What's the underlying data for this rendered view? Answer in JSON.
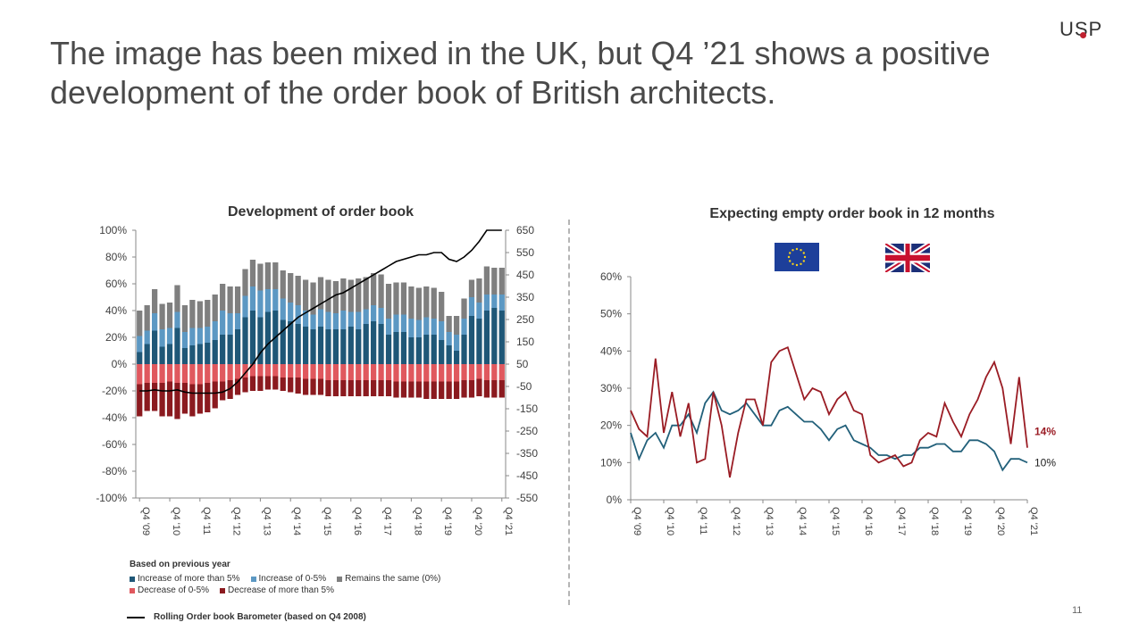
{
  "headline": "The image has been mixed in the UK, but Q4 ’21 shows a positive development of the order book of British architects.",
  "logo": "USP",
  "page_number": "11",
  "colors": {
    "increase_more_5": "#1f5777",
    "increase_0_5": "#5c98c3",
    "remains_same": "#7f7f7f",
    "decrease_0_5": "#e0585e",
    "decrease_more_5": "#8b1a1f",
    "barometer": "#000000",
    "eu_line": "#22607a",
    "uk_line": "#9a1c24"
  },
  "icons": [
    "eu-flag-icon",
    "uk-flag-icon"
  ],
  "legend": {
    "title": "Based on previous year",
    "items": [
      "Increase of more than 5%",
      "Increase of 0-5%",
      "Remains the same  (0%)",
      "Decrease of 0-5%",
      "Decrease of more than 5%"
    ],
    "line_label": "Rolling Order book Barometer (based on Q4 2008)"
  },
  "chart_data": [
    {
      "type": "bar",
      "stacked": true,
      "title": "Development of order book",
      "categories": [
        "Q4 '09",
        "Q1 '10",
        "Q2 '10",
        "Q3 '10",
        "Q4 '10",
        "Q1 '11",
        "Q2 '11",
        "Q3 '11",
        "Q4 '11",
        "Q1 '12",
        "Q2 '12",
        "Q3 '12",
        "Q4 '12",
        "Q1 '13",
        "Q2 '13",
        "Q3 '13",
        "Q4 '13",
        "Q1 '14",
        "Q2 '14",
        "Q3 '14",
        "Q4 '14",
        "Q1 '15",
        "Q2 '15",
        "Q3 '15",
        "Q4 '15",
        "Q1 '16",
        "Q2 '16",
        "Q3 '16",
        "Q4 '16",
        "Q1 '17",
        "Q2 '17",
        "Q3 '17",
        "Q4 '17",
        "Q1 '18",
        "Q2 '18",
        "Q3 '18",
        "Q4 '18",
        "Q1 '19",
        "Q2 '19",
        "Q3 '19",
        "Q4 '19",
        "Q1 '20",
        "Q2 '20",
        "Q3 '20",
        "Q4 '20",
        "Q1 '21",
        "Q2 '21",
        "Q3 '21",
        "Q4 '21"
      ],
      "tick_labels": [
        "Q4 '09",
        "Q4 '10",
        "Q4 '11",
        "Q4 '12",
        "Q4 '13",
        "Q4 '14",
        "Q4 '15",
        "Q4 '16",
        "Q4 '17",
        "Q4 '18",
        "Q4 '19",
        "Q4 '20",
        "Q4 '21"
      ],
      "ylim": [
        -100,
        100
      ],
      "y_ticks": [
        "100%",
        "80%",
        "60%",
        "40%",
        "20%",
        "0%",
        "-20%",
        "-40%",
        "-60%",
        "-80%",
        "-100%"
      ],
      "y2lim": [
        -550,
        650
      ],
      "y2_ticks": [
        "650",
        "550",
        "450",
        "350",
        "250",
        "150",
        "50",
        "-50",
        "-150",
        "-250",
        "-350",
        "-450",
        "-550"
      ],
      "series": [
        {
          "name": "Increase of more than 5%",
          "values": [
            9,
            15,
            25,
            13,
            15,
            27,
            12,
            14,
            15,
            16,
            18,
            22,
            22,
            26,
            35,
            40,
            35,
            39,
            40,
            33,
            32,
            30,
            28,
            26,
            28,
            26,
            26,
            26,
            28,
            26,
            30,
            32,
            30,
            22,
            24,
            24,
            20,
            20,
            22,
            22,
            18,
            14,
            10,
            22,
            36,
            34,
            40,
            42,
            40
          ]
        },
        {
          "name": "Increase of 0-5%",
          "values": [
            12,
            10,
            13,
            13,
            12,
            12,
            12,
            13,
            12,
            12,
            14,
            18,
            16,
            12,
            16,
            18,
            20,
            17,
            16,
            16,
            14,
            14,
            12,
            11,
            13,
            13,
            12,
            14,
            11,
            13,
            11,
            12,
            12,
            12,
            13,
            13,
            14,
            13,
            13,
            12,
            14,
            10,
            12,
            12,
            14,
            12,
            12,
            10,
            12
          ]
        },
        {
          "name": "Remains the same  (0%)",
          "values": [
            19,
            19,
            18,
            19,
            19,
            20,
            20,
            21,
            20,
            20,
            20,
            20,
            20,
            20,
            20,
            20,
            20,
            20,
            20,
            21,
            22,
            22,
            23,
            24,
            24,
            24,
            24,
            24,
            24,
            25,
            24,
            24,
            25,
            26,
            24,
            24,
            24,
            24,
            23,
            23,
            22,
            12,
            14,
            15,
            13,
            18,
            21,
            20,
            20
          ]
        },
        {
          "name": "Decrease of 0-5%",
          "values": [
            -15,
            -14,
            -14,
            -14,
            -13,
            -14,
            -14,
            -15,
            -15,
            -14,
            -13,
            -13,
            -12,
            -11,
            -10,
            -9,
            -9,
            -9,
            -9,
            -10,
            -10,
            -10,
            -11,
            -11,
            -11,
            -12,
            -12,
            -12,
            -12,
            -12,
            -12,
            -12,
            -12,
            -12,
            -13,
            -13,
            -13,
            -13,
            -13,
            -13,
            -13,
            -13,
            -13,
            -12,
            -12,
            -11,
            -12,
            -12,
            -12
          ]
        },
        {
          "name": "Decrease of more than 5%",
          "values": [
            -24,
            -21,
            -21,
            -25,
            -26,
            -27,
            -23,
            -24,
            -22,
            -22,
            -20,
            -14,
            -14,
            -12,
            -11,
            -11,
            -11,
            -10,
            -10,
            -10,
            -11,
            -12,
            -12,
            -12,
            -12,
            -12,
            -12,
            -12,
            -12,
            -12,
            -12,
            -12,
            -12,
            -12,
            -12,
            -12,
            -12,
            -12,
            -13,
            -13,
            -13,
            -13,
            -13,
            -13,
            -13,
            -13,
            -13,
            -13,
            -13
          ]
        }
      ],
      "barometer_y2": [
        -70,
        -70,
        -65,
        -70,
        -70,
        -65,
        -75,
        -80,
        -80,
        -80,
        -80,
        -75,
        -60,
        -30,
        10,
        50,
        100,
        140,
        170,
        200,
        230,
        260,
        280,
        300,
        320,
        340,
        360,
        370,
        390,
        410,
        430,
        450,
        470,
        490,
        510,
        520,
        530,
        540,
        540,
        550,
        550,
        520,
        510,
        530,
        560,
        600,
        650,
        650,
        650
      ]
    },
    {
      "type": "line",
      "title": "Expecting empty order book in 12 months",
      "categories": [
        "Q4 '09",
        "Q1 '10",
        "Q2 '10",
        "Q3 '10",
        "Q4 '10",
        "Q1 '11",
        "Q2 '11",
        "Q3 '11",
        "Q4 '11",
        "Q1 '12",
        "Q2 '12",
        "Q3 '12",
        "Q4 '12",
        "Q1 '13",
        "Q2 '13",
        "Q3 '13",
        "Q4 '13",
        "Q1 '14",
        "Q2 '14",
        "Q3 '14",
        "Q4 '14",
        "Q1 '15",
        "Q2 '15",
        "Q3 '15",
        "Q4 '15",
        "Q1 '16",
        "Q2 '16",
        "Q3 '16",
        "Q4 '16",
        "Q1 '17",
        "Q2 '17",
        "Q3 '17",
        "Q4 '17",
        "Q1 '18",
        "Q2 '18",
        "Q3 '18",
        "Q4 '18",
        "Q1 '19",
        "Q2 '19",
        "Q3 '19",
        "Q4 '19",
        "Q1 '20",
        "Q2 '20",
        "Q3 '20",
        "Q4 '20",
        "Q1 '21",
        "Q2 '21",
        "Q3 '21",
        "Q4 '21"
      ],
      "tick_labels": [
        "Q4 '09",
        "Q4 '10",
        "Q4 '11",
        "Q4 '12",
        "Q4 '13",
        "Q4 '14",
        "Q4 '15",
        "Q4 '16",
        "Q4 '17",
        "Q4 '18",
        "Q4 '19",
        "Q4 '20",
        "Q4 '21"
      ],
      "ylim": [
        0,
        60
      ],
      "y_ticks": [
        "60%",
        "50%",
        "40%",
        "30%",
        "20%",
        "10%",
        "0%"
      ],
      "series": [
        {
          "key": "eu",
          "values": [
            18,
            11,
            16,
            18,
            14,
            20,
            20,
            23,
            18,
            26,
            29,
            24,
            23,
            24,
            26,
            23,
            20,
            20,
            24,
            25,
            23,
            21,
            21,
            19,
            16,
            19,
            20,
            16,
            15,
            14,
            12,
            12,
            11,
            12,
            12,
            14,
            14,
            15,
            15,
            13,
            13,
            16,
            16,
            15,
            13,
            8,
            11,
            11,
            10
          ],
          "end_label": "10%"
        },
        {
          "key": "uk",
          "values": [
            24,
            19,
            17,
            38,
            18,
            29,
            17,
            26,
            10,
            11,
            29,
            20,
            6,
            18,
            27,
            27,
            20,
            37,
            40,
            41,
            34,
            27,
            30,
            29,
            23,
            27,
            29,
            24,
            23,
            12,
            10,
            11,
            12,
            9,
            10,
            16,
            18,
            17,
            26,
            21,
            17,
            23,
            27,
            33,
            37,
            30,
            15,
            33,
            14
          ],
          "end_label": "14%"
        }
      ]
    }
  ]
}
